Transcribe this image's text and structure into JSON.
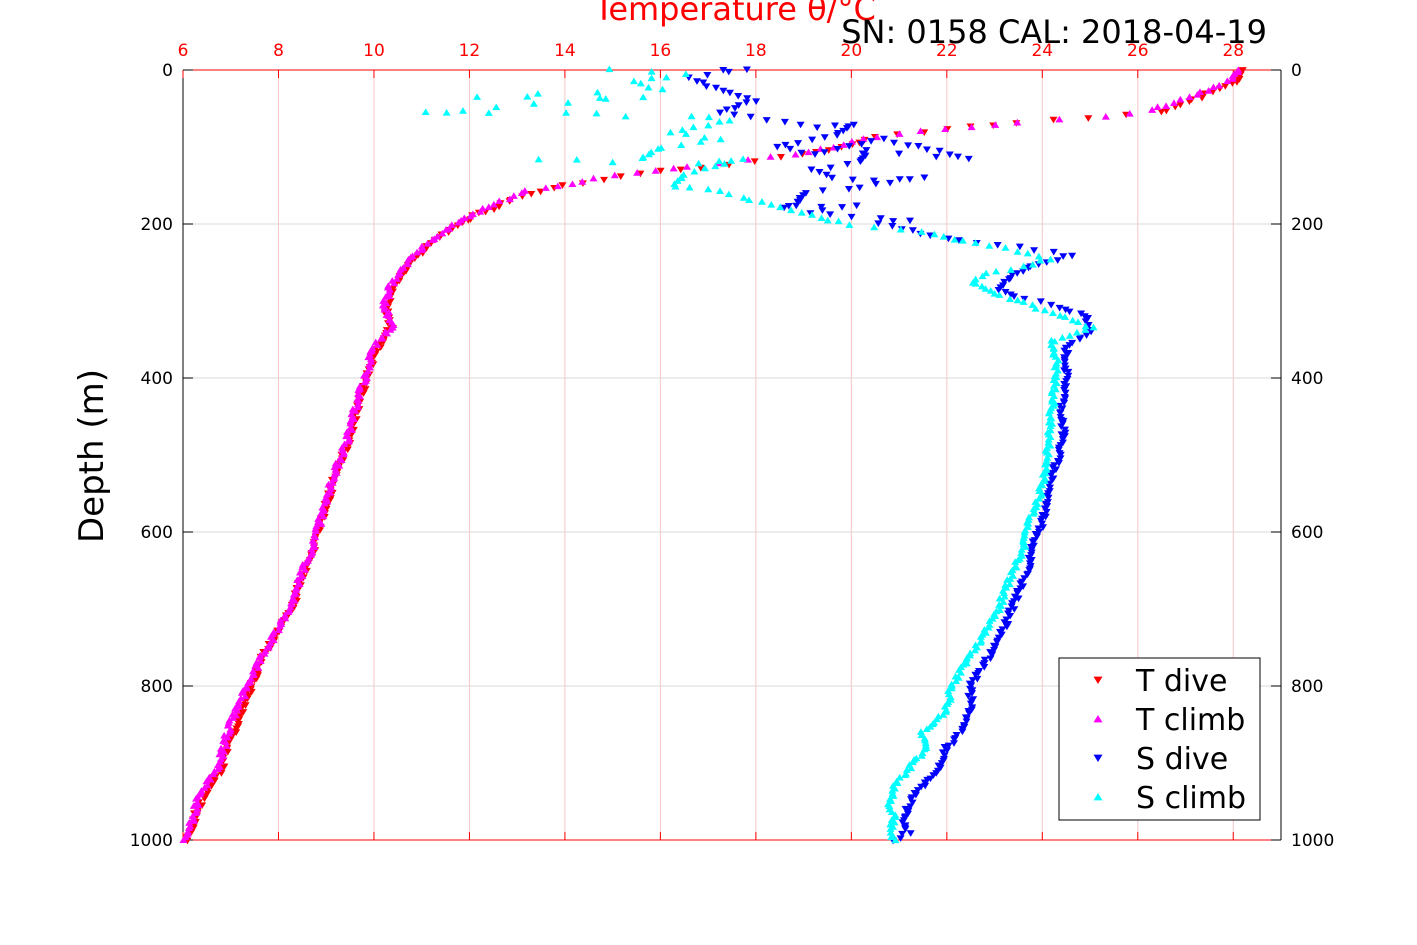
{
  "chart_data": {
    "type": "scatter",
    "title": "Temperature θ/°C",
    "annotation": "SN: 0158  CAL: 2018-04-19",
    "ylabel": "Depth (m)",
    "xlim": [
      6,
      29
    ],
    "ylim": [
      0,
      1000
    ],
    "y_reversed": true,
    "grid": true,
    "legend_position": "bottom-right",
    "x_ticks": [
      "6",
      "8",
      "10",
      "12",
      "14",
      "16",
      "18",
      "20",
      "22",
      "24",
      "26",
      "28"
    ],
    "x_tick_values": [
      6,
      8,
      10,
      12,
      14,
      16,
      18,
      20,
      22,
      24,
      26,
      28
    ],
    "y_ticks": [
      "0",
      "200",
      "400",
      "600",
      "800",
      "1000"
    ],
    "y_tick_values": [
      0,
      200,
      400,
      600,
      800,
      1000
    ],
    "colors": {
      "axis_top": "#ff0000",
      "axis_bottom": "#ff0000",
      "frame": "#000000",
      "grid_vertical": "#f5c6c6",
      "grid_horizontal": "#d9d9d9",
      "title": "#ff0000",
      "annotation": "#000000"
    },
    "series": [
      {
        "name": "T dive",
        "color": "#ff0000",
        "marker": "triangle-down",
        "points": [
          [
            28.2,
            0
          ],
          [
            28.1,
            15
          ],
          [
            27.3,
            35
          ],
          [
            26.5,
            55
          ],
          [
            25.0,
            62
          ],
          [
            23.5,
            68
          ],
          [
            22.0,
            77
          ],
          [
            20.5,
            88
          ],
          [
            19.8,
            100
          ],
          [
            19.0,
            110
          ],
          [
            18.0,
            118
          ],
          [
            16.8,
            126
          ],
          [
            15.6,
            135
          ],
          [
            14.8,
            142
          ],
          [
            14.0,
            150
          ],
          [
            13.3,
            160
          ],
          [
            12.9,
            168
          ],
          [
            12.5,
            180
          ],
          [
            12.1,
            190
          ],
          [
            11.7,
            205
          ],
          [
            11.2,
            225
          ],
          [
            10.8,
            250
          ],
          [
            10.4,
            280
          ],
          [
            10.25,
            310
          ],
          [
            10.35,
            335
          ],
          [
            10.1,
            360
          ],
          [
            9.9,
            390
          ],
          [
            9.75,
            420
          ],
          [
            9.6,
            450
          ],
          [
            9.5,
            480
          ],
          [
            9.3,
            510
          ],
          [
            9.1,
            545
          ],
          [
            8.95,
            580
          ],
          [
            8.75,
            620
          ],
          [
            8.5,
            660
          ],
          [
            8.3,
            695
          ],
          [
            8.0,
            730
          ],
          [
            7.7,
            760
          ],
          [
            7.5,
            790
          ],
          [
            7.3,
            820
          ],
          [
            7.1,
            855
          ],
          [
            6.95,
            880
          ],
          [
            6.8,
            910
          ],
          [
            6.5,
            935
          ],
          [
            6.3,
            960
          ],
          [
            6.2,
            985
          ],
          [
            6.1,
            1000
          ]
        ]
      },
      {
        "name": "T climb",
        "color": "#ff00ff",
        "marker": "triangle-up",
        "points": [
          [
            28.1,
            0
          ],
          [
            28.0,
            12
          ],
          [
            27.2,
            33
          ],
          [
            26.3,
            52
          ],
          [
            25.3,
            60
          ],
          [
            23.5,
            67
          ],
          [
            22.0,
            76
          ],
          [
            20.5,
            87
          ],
          [
            19.6,
            100
          ],
          [
            18.8,
            110
          ],
          [
            17.8,
            117
          ],
          [
            16.6,
            125
          ],
          [
            15.5,
            134
          ],
          [
            14.6,
            141
          ],
          [
            13.9,
            150
          ],
          [
            13.2,
            158
          ],
          [
            12.8,
            167
          ],
          [
            12.4,
            178
          ],
          [
            12.0,
            190
          ],
          [
            11.6,
            205
          ],
          [
            11.1,
            225
          ],
          [
            10.7,
            250
          ],
          [
            10.35,
            280
          ],
          [
            10.2,
            305
          ],
          [
            10.4,
            330
          ],
          [
            10.0,
            360
          ],
          [
            9.85,
            390
          ],
          [
            9.7,
            420
          ],
          [
            9.55,
            450
          ],
          [
            9.45,
            480
          ],
          [
            9.25,
            510
          ],
          [
            9.05,
            545
          ],
          [
            8.9,
            580
          ],
          [
            8.7,
            620
          ],
          [
            8.45,
            660
          ],
          [
            8.25,
            695
          ],
          [
            7.95,
            730
          ],
          [
            7.65,
            760
          ],
          [
            7.45,
            790
          ],
          [
            7.2,
            820
          ],
          [
            6.95,
            855
          ],
          [
            6.85,
            880
          ],
          [
            6.75,
            905
          ],
          [
            6.4,
            935
          ],
          [
            6.25,
            960
          ],
          [
            6.15,
            985
          ],
          [
            6.05,
            1000
          ]
        ]
      },
      {
        "name": "S dive",
        "color": "#0000ff",
        "marker": "triangle-down",
        "points": [
          [
            17.3,
            0
          ],
          [
            17.8,
            0
          ],
          [
            16.6,
            10
          ],
          [
            17.0,
            20
          ],
          [
            17.5,
            30
          ],
          [
            18.0,
            40
          ],
          [
            17.2,
            55
          ],
          [
            19.3,
            75
          ],
          [
            20.0,
            70
          ],
          [
            19.7,
            85
          ],
          [
            18.4,
            100
          ],
          [
            19.2,
            110
          ],
          [
            20.7,
            90
          ],
          [
            21.4,
            100
          ],
          [
            22.5,
            115
          ],
          [
            20.3,
            105
          ],
          [
            20.2,
            120
          ],
          [
            19.2,
            130
          ],
          [
            19.6,
            140
          ],
          [
            20.5,
            145
          ],
          [
            21.5,
            140
          ],
          [
            19.9,
            155
          ],
          [
            19.0,
            160
          ],
          [
            18.8,
            175
          ],
          [
            18.6,
            180
          ],
          [
            20.1,
            175
          ],
          [
            19.1,
            185
          ],
          [
            20.0,
            190
          ],
          [
            21.2,
            195
          ],
          [
            20.6,
            200
          ],
          [
            21.7,
            215
          ],
          [
            22.6,
            225
          ],
          [
            23.5,
            230
          ],
          [
            24.6,
            240
          ],
          [
            23.8,
            255
          ],
          [
            23.3,
            270
          ],
          [
            23.1,
            285
          ],
          [
            23.4,
            295
          ],
          [
            24.2,
            305
          ],
          [
            24.9,
            320
          ],
          [
            25.0,
            340
          ],
          [
            24.5,
            360
          ],
          [
            24.5,
            380
          ],
          [
            24.5,
            410
          ],
          [
            24.4,
            440
          ],
          [
            24.45,
            470
          ],
          [
            24.35,
            500
          ],
          [
            24.2,
            530
          ],
          [
            24.1,
            560
          ],
          [
            24.0,
            590
          ],
          [
            23.8,
            620
          ],
          [
            23.7,
            650
          ],
          [
            23.5,
            680
          ],
          [
            23.3,
            710
          ],
          [
            23.1,
            740
          ],
          [
            22.8,
            770
          ],
          [
            22.5,
            800
          ],
          [
            22.5,
            830
          ],
          [
            22.3,
            860
          ],
          [
            22.0,
            880
          ],
          [
            21.8,
            910
          ],
          [
            21.4,
            935
          ],
          [
            21.2,
            955
          ],
          [
            21.1,
            975
          ],
          [
            21.2,
            990
          ],
          [
            20.9,
            1000
          ]
        ]
      },
      {
        "name": "S climb",
        "color": "#00ffff",
        "marker": "triangle-up",
        "points": [
          [
            14.9,
            0
          ],
          [
            15.8,
            3
          ],
          [
            16.5,
            5
          ],
          [
            15.4,
            15
          ],
          [
            16.0,
            25
          ],
          [
            12.2,
            35
          ],
          [
            13.2,
            35
          ],
          [
            14.7,
            35
          ],
          [
            15.6,
            35
          ],
          [
            11.1,
            55
          ],
          [
            11.5,
            55
          ],
          [
            12.4,
            55
          ],
          [
            14.0,
            55
          ],
          [
            15.3,
            60
          ],
          [
            16.6,
            60
          ],
          [
            17.5,
            65
          ],
          [
            16.2,
            80
          ],
          [
            17.3,
            90
          ],
          [
            16.0,
            100
          ],
          [
            15.6,
            115
          ],
          [
            13.5,
            115
          ],
          [
            15.0,
            120
          ],
          [
            16.8,
            120
          ],
          [
            17.7,
            115
          ],
          [
            16.5,
            135
          ],
          [
            16.3,
            150
          ],
          [
            17.0,
            155
          ],
          [
            17.7,
            165
          ],
          [
            18.3,
            175
          ],
          [
            19.0,
            185
          ],
          [
            19.5,
            195
          ],
          [
            20.0,
            200
          ],
          [
            21.5,
            210
          ],
          [
            22.6,
            225
          ],
          [
            23.5,
            235
          ],
          [
            24.2,
            245
          ],
          [
            23.6,
            255
          ],
          [
            22.8,
            265
          ],
          [
            22.5,
            275
          ],
          [
            23.0,
            290
          ],
          [
            24.2,
            315
          ],
          [
            25.1,
            335
          ],
          [
            24.2,
            350
          ],
          [
            24.3,
            380
          ],
          [
            24.25,
            410
          ],
          [
            24.2,
            440
          ],
          [
            24.15,
            470
          ],
          [
            24.1,
            500
          ],
          [
            24.05,
            530
          ],
          [
            23.9,
            560
          ],
          [
            23.7,
            590
          ],
          [
            23.6,
            620
          ],
          [
            23.4,
            650
          ],
          [
            23.2,
            680
          ],
          [
            23.0,
            710
          ],
          [
            22.7,
            740
          ],
          [
            22.4,
            770
          ],
          [
            22.1,
            800
          ],
          [
            22.0,
            830
          ],
          [
            21.5,
            860
          ],
          [
            21.6,
            880
          ],
          [
            21.3,
            900
          ],
          [
            20.9,
            930
          ],
          [
            20.8,
            950
          ],
          [
            20.9,
            970
          ],
          [
            20.8,
            990
          ],
          [
            20.9,
            1000
          ]
        ]
      }
    ]
  }
}
